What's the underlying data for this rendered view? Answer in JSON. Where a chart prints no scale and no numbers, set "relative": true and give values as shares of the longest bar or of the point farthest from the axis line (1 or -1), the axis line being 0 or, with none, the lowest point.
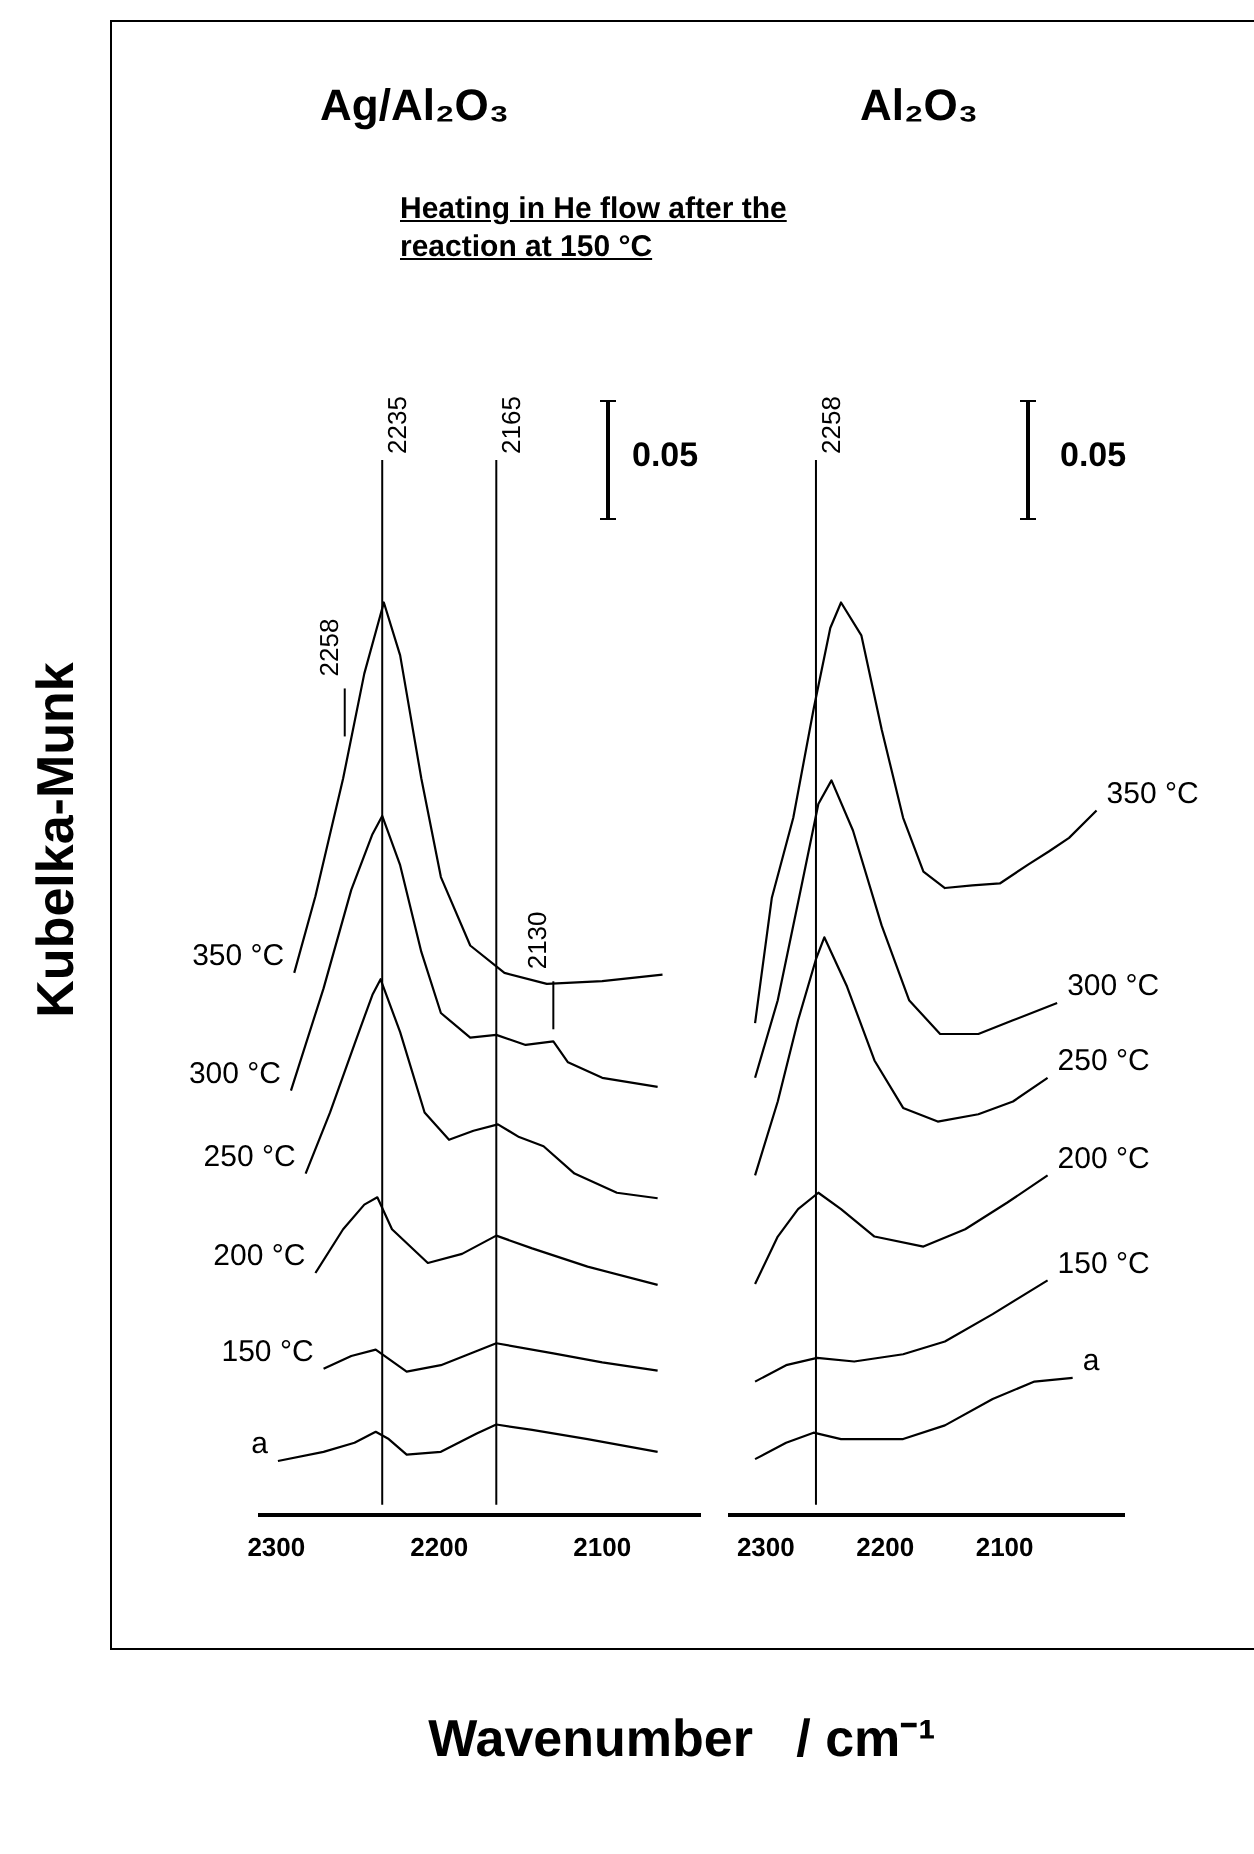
{
  "chart_data": [
    {
      "type": "line",
      "title": "Ag/Al₂O₃",
      "subtitle": "Heating in He flow after the reaction at 150 °C",
      "ylabel": "Kubelka-Munk",
      "xlabel": "Wavenumber   / cm⁻¹",
      "relative": true,
      "xlim": [
        2310,
        2040
      ],
      "xticks": [
        2300,
        2200,
        2100
      ],
      "series": [
        {
          "name": "350 °C",
          "color": "#000000",
          "x": [
            2289,
            2276,
            2259,
            2246,
            2234,
            2224,
            2211,
            2199,
            2181,
            2160,
            2134,
            2100,
            2063
          ],
          "values": [
            0.594,
            0.678,
            0.807,
            0.922,
            1.0,
            0.942,
            0.807,
            0.699,
            0.624,
            0.594,
            0.582,
            0.585,
            0.592
          ]
        },
        {
          "name": "300 °C",
          "color": "#000000",
          "x": [
            2291,
            2271,
            2254,
            2241,
            2235,
            2224,
            2211,
            2199,
            2181,
            2165,
            2147,
            2130,
            2121,
            2100,
            2066
          ],
          "values": [
            0.465,
            0.577,
            0.685,
            0.746,
            0.766,
            0.712,
            0.617,
            0.55,
            0.523,
            0.526,
            0.515,
            0.519,
            0.496,
            0.479,
            0.469
          ]
        },
        {
          "name": "250 °C",
          "color": "#000000",
          "x": [
            2282,
            2267,
            2252,
            2241,
            2236,
            2224,
            2209,
            2194,
            2179,
            2164,
            2151,
            2136,
            2117,
            2091,
            2066
          ],
          "values": [
            0.374,
            0.441,
            0.516,
            0.57,
            0.587,
            0.529,
            0.441,
            0.411,
            0.421,
            0.428,
            0.414,
            0.404,
            0.374,
            0.353,
            0.347
          ]
        },
        {
          "name": "200 °C",
          "color": "#000000",
          "x": [
            2276,
            2259,
            2246,
            2238,
            2229,
            2207,
            2186,
            2165,
            2143,
            2109,
            2066
          ],
          "values": [
            0.265,
            0.313,
            0.34,
            0.348,
            0.313,
            0.276,
            0.286,
            0.306,
            0.292,
            0.272,
            0.252
          ]
        },
        {
          "name": "150 °C",
          "color": "#000000",
          "x": [
            2271,
            2254,
            2239,
            2220,
            2199,
            2165,
            2130,
            2100,
            2066
          ],
          "values": [
            0.16,
            0.174,
            0.181,
            0.157,
            0.164,
            0.188,
            0.177,
            0.167,
            0.158
          ]
        },
        {
          "name": "a",
          "color": "#000000",
          "x": [
            2299,
            2271,
            2252,
            2239,
            2231,
            2220,
            2199,
            2177,
            2165,
            2143,
            2109,
            2066
          ],
          "values": [
            0.059,
            0.069,
            0.079,
            0.091,
            0.083,
            0.066,
            0.069,
            0.089,
            0.099,
            0.093,
            0.083,
            0.069
          ]
        }
      ],
      "ref_lines": [
        {
          "axis": "x",
          "value": 2235,
          "label": "2235"
        },
        {
          "axis": "x",
          "value": 2165,
          "label": "2165"
        }
      ],
      "annotations": [
        {
          "text": "2258",
          "x": 2258,
          "y": 0.84
        },
        {
          "text": "2130",
          "x": 2130,
          "y": 0.519
        },
        "0.05"
      ]
    },
    {
      "type": "line",
      "title": "Al₂O₃",
      "relative": true,
      "xlim": [
        2330,
        2000
      ],
      "xticks": [
        2300,
        2200,
        2100
      ],
      "series": [
        {
          "name": "350 °C",
          "color": "#000000",
          "x": [
            2309,
            2295,
            2277,
            2260,
            2246,
            2237,
            2220,
            2203,
            2185,
            2168,
            2150,
            2127,
            2104,
            2080,
            2063,
            2046,
            2023
          ],
          "values": [
            0.539,
            0.676,
            0.764,
            0.883,
            0.972,
            1.0,
            0.964,
            0.861,
            0.764,
            0.705,
            0.687,
            0.69,
            0.692,
            0.713,
            0.727,
            0.742,
            0.772
          ]
        },
        {
          "name": "300 °C",
          "color": "#000000",
          "x": [
            2309,
            2290,
            2270,
            2256,
            2245,
            2227,
            2203,
            2180,
            2154,
            2122,
            2093,
            2056
          ],
          "values": [
            0.479,
            0.564,
            0.69,
            0.779,
            0.805,
            0.75,
            0.646,
            0.564,
            0.527,
            0.527,
            0.542,
            0.561
          ]
        },
        {
          "name": "250 °C",
          "color": "#000000",
          "x": [
            2309,
            2290,
            2273,
            2258,
            2251,
            2232,
            2209,
            2185,
            2156,
            2122,
            2093,
            2064
          ],
          "values": [
            0.372,
            0.453,
            0.542,
            0.609,
            0.633,
            0.579,
            0.498,
            0.446,
            0.431,
            0.439,
            0.453,
            0.479
          ]
        },
        {
          "name": "200 °C",
          "color": "#000000",
          "x": [
            2309,
            2290,
            2273,
            2256,
            2237,
            2209,
            2168,
            2133,
            2098,
            2064
          ],
          "values": [
            0.253,
            0.305,
            0.335,
            0.353,
            0.335,
            0.305,
            0.294,
            0.313,
            0.342,
            0.372
          ]
        },
        {
          "name": "150 °C",
          "color": "#000000",
          "x": [
            2309,
            2283,
            2257,
            2226,
            2185,
            2150,
            2110,
            2064
          ],
          "values": [
            0.146,
            0.164,
            0.172,
            0.168,
            0.176,
            0.19,
            0.22,
            0.257
          ]
        },
        {
          "name": "a",
          "color": "#000000",
          "x": [
            2309,
            2283,
            2260,
            2237,
            2185,
            2150,
            2110,
            2075,
            2043
          ],
          "values": [
            0.061,
            0.079,
            0.09,
            0.083,
            0.083,
            0.098,
            0.127,
            0.146,
            0.15
          ]
        }
      ],
      "ref_lines": [
        {
          "axis": "x",
          "value": 2258,
          "label": "2258"
        }
      ],
      "annotations": [
        "0.05"
      ]
    }
  ]
}
